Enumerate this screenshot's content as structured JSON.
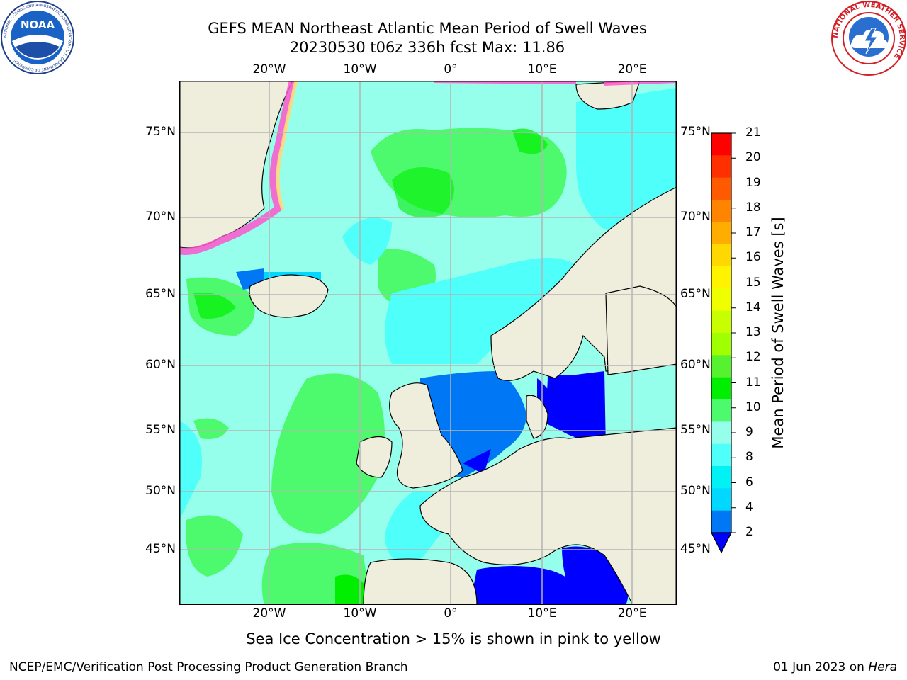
{
  "header": {
    "title_line1": "GEFS MEAN Northeast Atlantic Mean Period of Swell Waves",
    "title_line2": "20230530 t06z 336h fcst   Max: 11.86"
  },
  "map": {
    "lon_labels": [
      "20°W",
      "10°W",
      "0°",
      "10°E",
      "20°E"
    ],
    "lat_labels": [
      "75°N",
      "70°N",
      "65°N",
      "60°N",
      "55°N",
      "50°N",
      "45°N"
    ],
    "land_color": "#efeddc",
    "grid_color": "#b4b4b4"
  },
  "colorbar": {
    "title": "Mean Period of Swell Waves [s]",
    "labels": [
      "21",
      "20",
      "19",
      "18",
      "17",
      "16",
      "15",
      "14",
      "13",
      "12",
      "11",
      "10",
      "9",
      "8",
      "6",
      "4",
      "2"
    ],
    "colors": [
      "#ff0000",
      "#ff2f00",
      "#ff5a00",
      "#ff8400",
      "#ffae00",
      "#ffd800",
      "#fff300",
      "#f0ff00",
      "#c8ff00",
      "#a0ff00",
      "#57f22f",
      "#00ee00",
      "#4dfa6e",
      "#96ffeb",
      "#4ffffa",
      "#00f2f5",
      "#00d8ff",
      "#0078f5",
      "#0000ff"
    ]
  },
  "logos": {
    "noaa_text": "NOAA",
    "noaa_ring_text": "NATIONAL OCEANIC AND ATMOSPHERIC ADMINISTRATION · U.S. DEPARTMENT OF COMMERCE",
    "nws_ring_text": "NATIONAL WEATHER SERVICE"
  },
  "footer": {
    "note": "Sea Ice Concentration > 15% is shown in pink to yellow",
    "left": "NCEP/EMC/Verification Post Processing Product Generation Branch",
    "right_date": "01 Jun 2023 on ",
    "right_host": "Hera"
  }
}
